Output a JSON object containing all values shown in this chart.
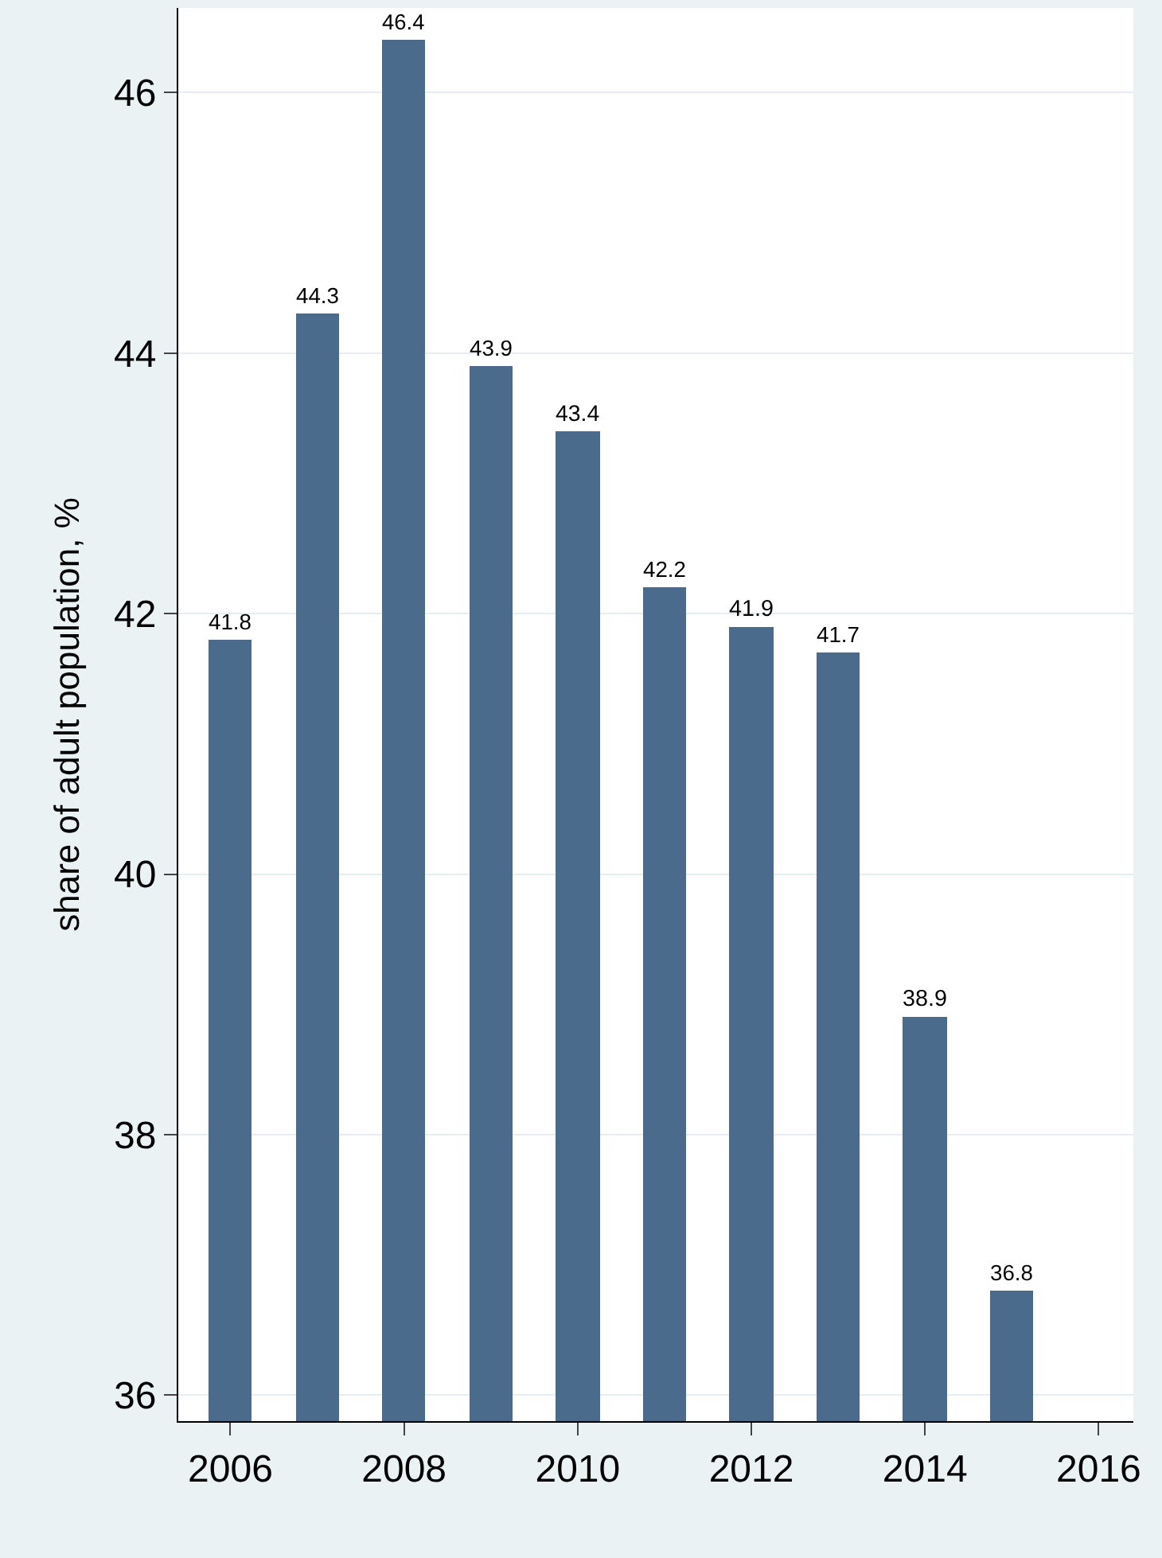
{
  "chart_data": {
    "type": "bar",
    "ylabel": "share of adult population, %",
    "x": [
      2006,
      2007,
      2008,
      2009,
      2010,
      2011,
      2012,
      2013,
      2014,
      2015
    ],
    "values": [
      41.8,
      44.3,
      46.4,
      43.9,
      43.4,
      42.2,
      41.9,
      41.7,
      38.9,
      36.8
    ],
    "color": "#4a6b8c",
    "xlim": [
      2005.4,
      2016.4
    ],
    "xticks": [
      2006,
      2008,
      2010,
      2012,
      2014,
      2016
    ],
    "ylim": [
      35.8,
      46.65
    ],
    "yticks": [
      36,
      38,
      40,
      42,
      44,
      46
    ],
    "grid": "y",
    "data_labels": true
  }
}
